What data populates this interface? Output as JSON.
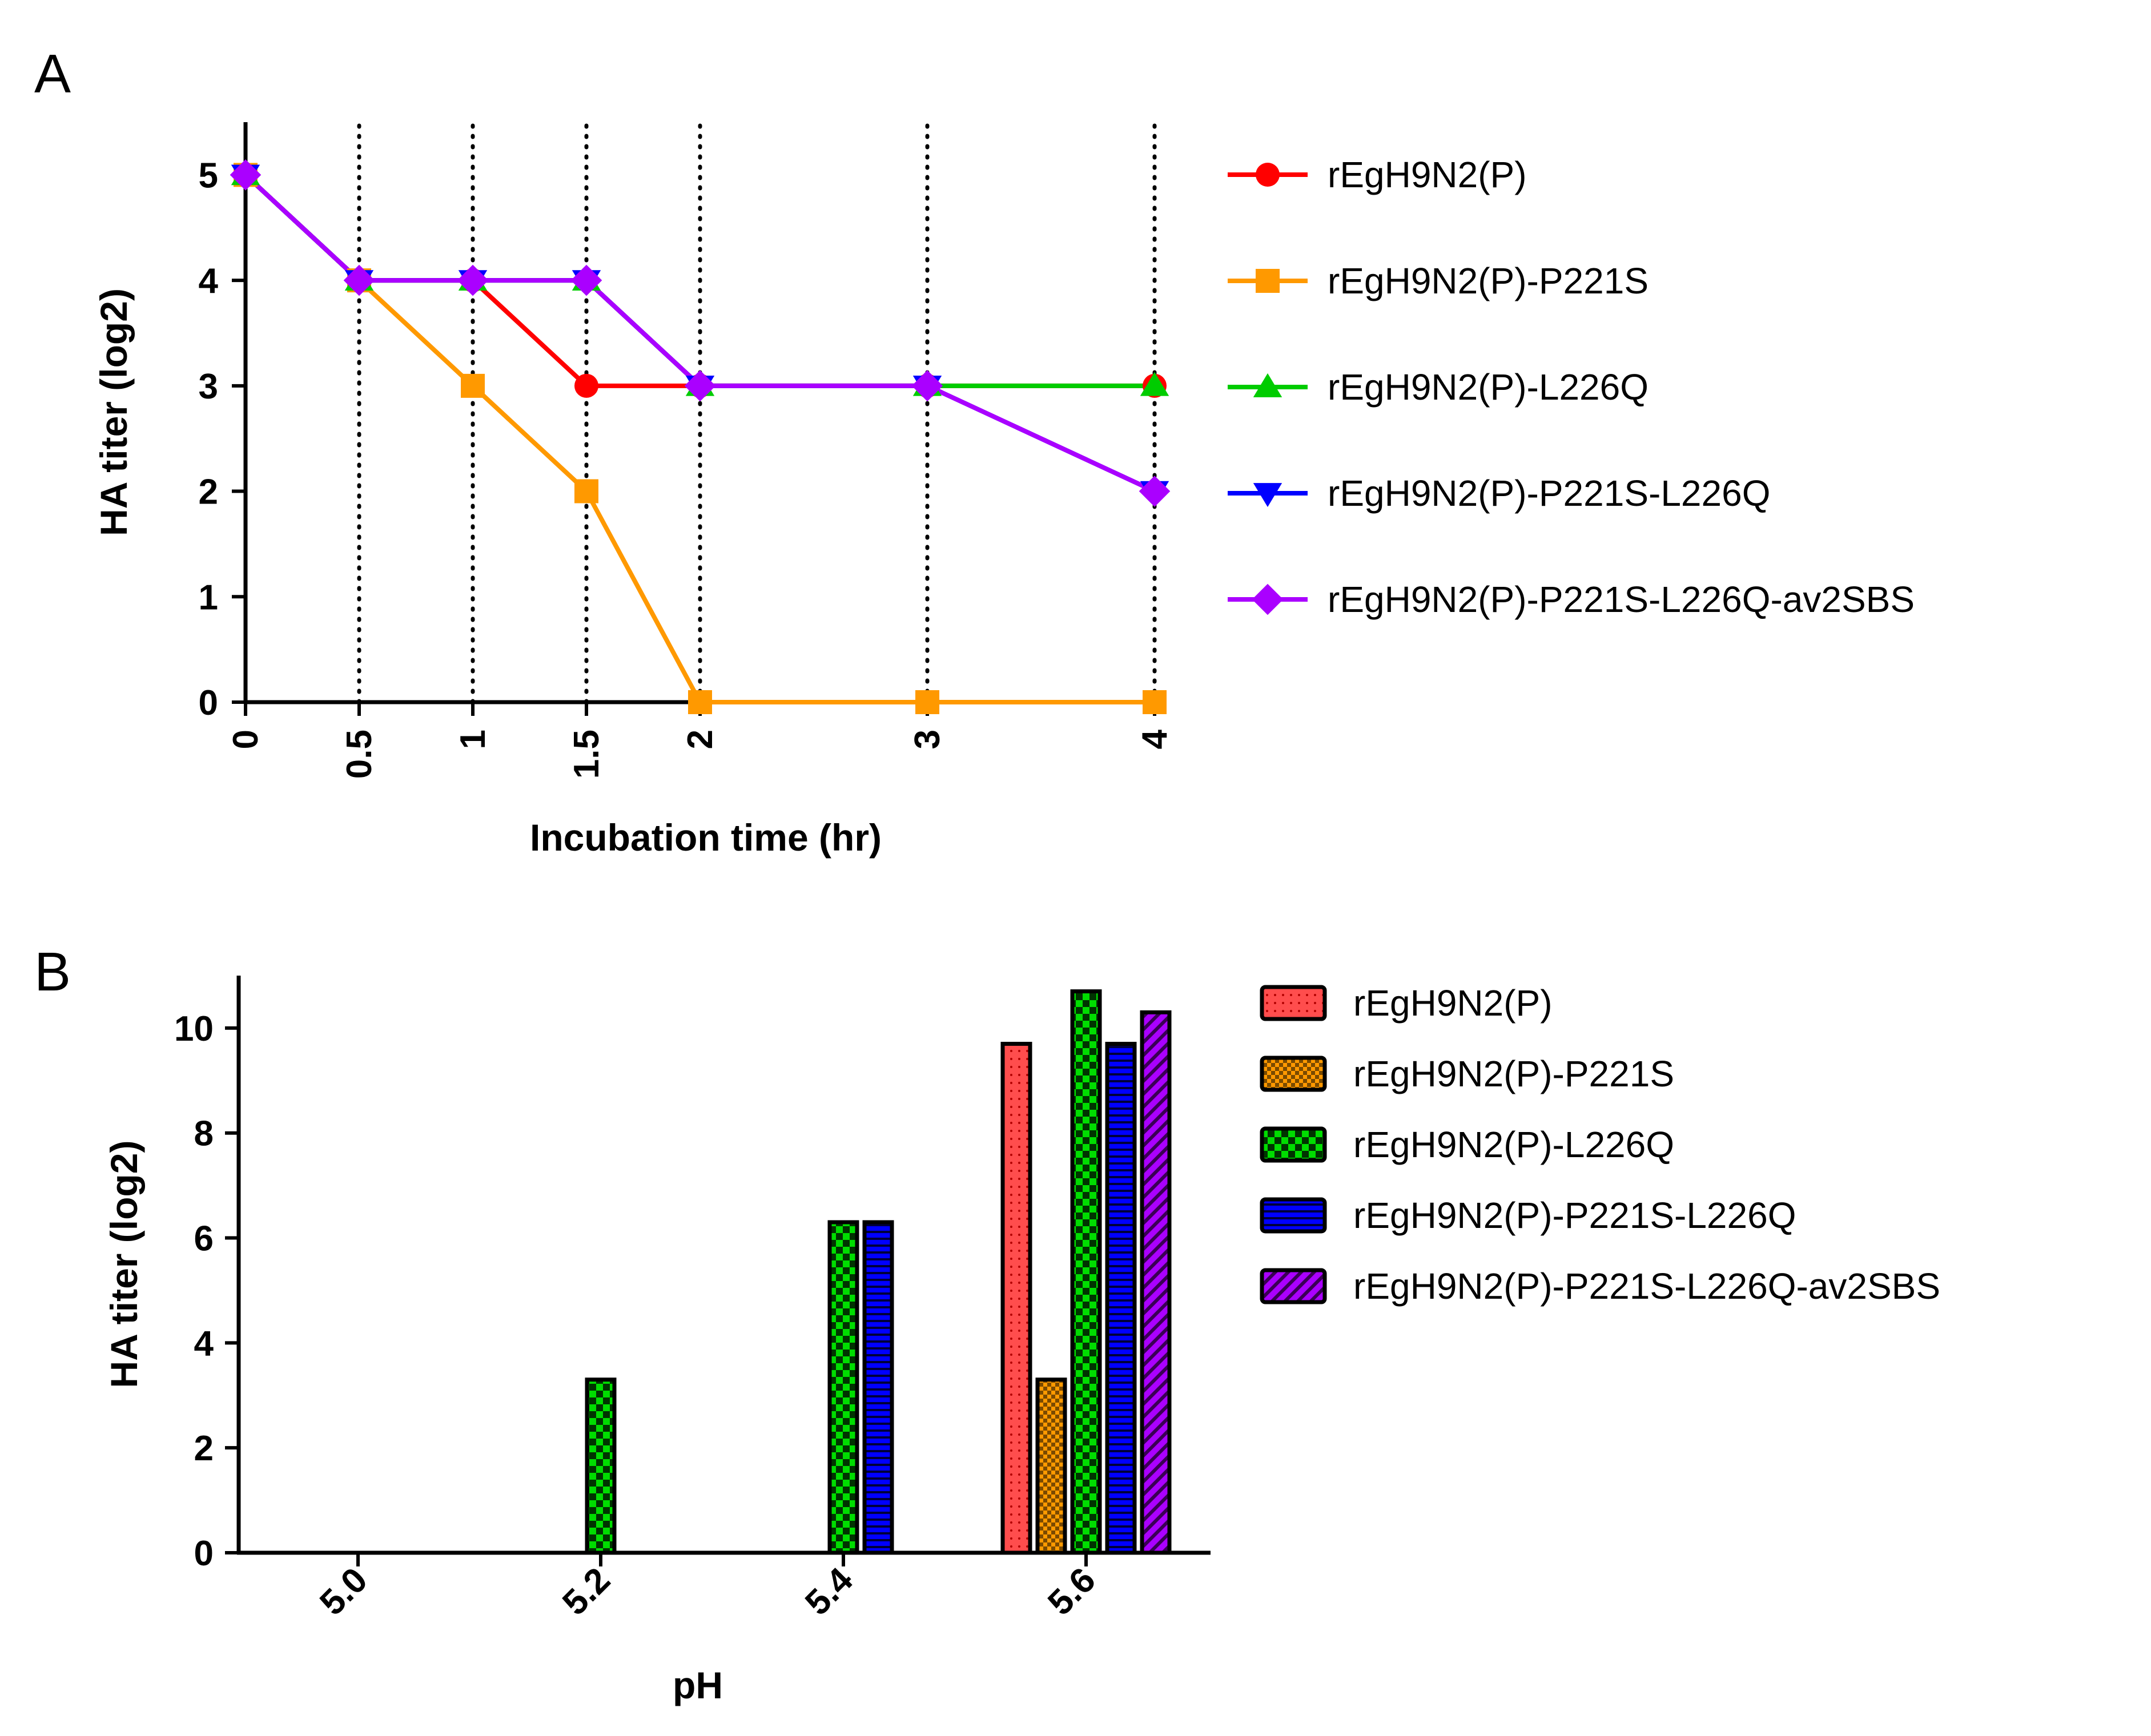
{
  "chart_data": [
    {
      "panel": "A",
      "type": "line",
      "xlabel": "Incubation time (hr)",
      "ylabel": "HA titer (log2)",
      "x": [
        0,
        0.5,
        1,
        1.5,
        2,
        3,
        4
      ],
      "x_tick_labels": [
        "0",
        "0.5",
        "1",
        "1.5",
        "2",
        "3",
        "4"
      ],
      "y_ticks": [
        0,
        1,
        2,
        3,
        4,
        5
      ],
      "xlim": [
        0,
        4
      ],
      "ylim": [
        0,
        5.5
      ],
      "vertical_dotted_lines_at": [
        0.5,
        1,
        1.5,
        2,
        3,
        4
      ],
      "legend_position": "right",
      "series": [
        {
          "name": "rEgH9N2(P)",
          "color": "#ff0000",
          "marker": "circle",
          "values": [
            5,
            4,
            4,
            3,
            3,
            3,
            3
          ]
        },
        {
          "name": "rEgH9N2(P)-P221S",
          "color": "#ff9900",
          "marker": "square",
          "values": [
            5,
            4,
            3,
            2,
            0,
            0,
            0
          ]
        },
        {
          "name": "rEgH9N2(P)-L226Q",
          "color": "#00cc00",
          "marker": "triangle-up",
          "values": [
            5,
            4,
            4,
            4,
            3,
            3,
            3
          ]
        },
        {
          "name": "rEgH9N2(P)-P221S-L226Q",
          "color": "#0000ff",
          "marker": "triangle-down",
          "values": [
            5,
            4,
            4,
            4,
            3,
            3,
            2
          ]
        },
        {
          "name": "rEgH9N2(P)-P221S-L226Q-av2SBS",
          "color": "#aa00ff",
          "marker": "diamond",
          "values": [
            5,
            4,
            4,
            4,
            3,
            3,
            2
          ]
        }
      ]
    },
    {
      "panel": "B",
      "type": "bar",
      "xlabel": "pH",
      "ylabel": "HA titer (log2)",
      "categories": [
        "5.0",
        "5.2",
        "5.4",
        "5.6"
      ],
      "y_ticks": [
        0,
        2,
        4,
        6,
        8,
        10
      ],
      "ylim": [
        0,
        11
      ],
      "legend_position": "right",
      "series": [
        {
          "name": "rEgH9N2(P)",
          "color": "#ff4d4d",
          "pattern": "dots",
          "values": [
            0,
            0,
            0,
            9.7
          ]
        },
        {
          "name": "rEgH9N2(P)-P221S",
          "color": "#ff9900",
          "pattern": "checker",
          "values": [
            0,
            0,
            0,
            3.3
          ]
        },
        {
          "name": "rEgH9N2(P)-L226Q",
          "color": "#00dd00",
          "pattern": "crosses",
          "values": [
            0,
            3.3,
            6.3,
            10.7
          ]
        },
        {
          "name": "rEgH9N2(P)-P221S-L226Q",
          "color": "#0000ff",
          "pattern": "hstripes",
          "values": [
            0,
            0,
            6.3,
            9.7
          ]
        },
        {
          "name": "rEgH9N2(P)-P221S-L226Q-av2SBS",
          "color": "#aa00ff",
          "pattern": "diag",
          "values": [
            0,
            0,
            0,
            10.3
          ]
        }
      ]
    }
  ],
  "panel_labels": {
    "a": "A",
    "b": "B"
  }
}
